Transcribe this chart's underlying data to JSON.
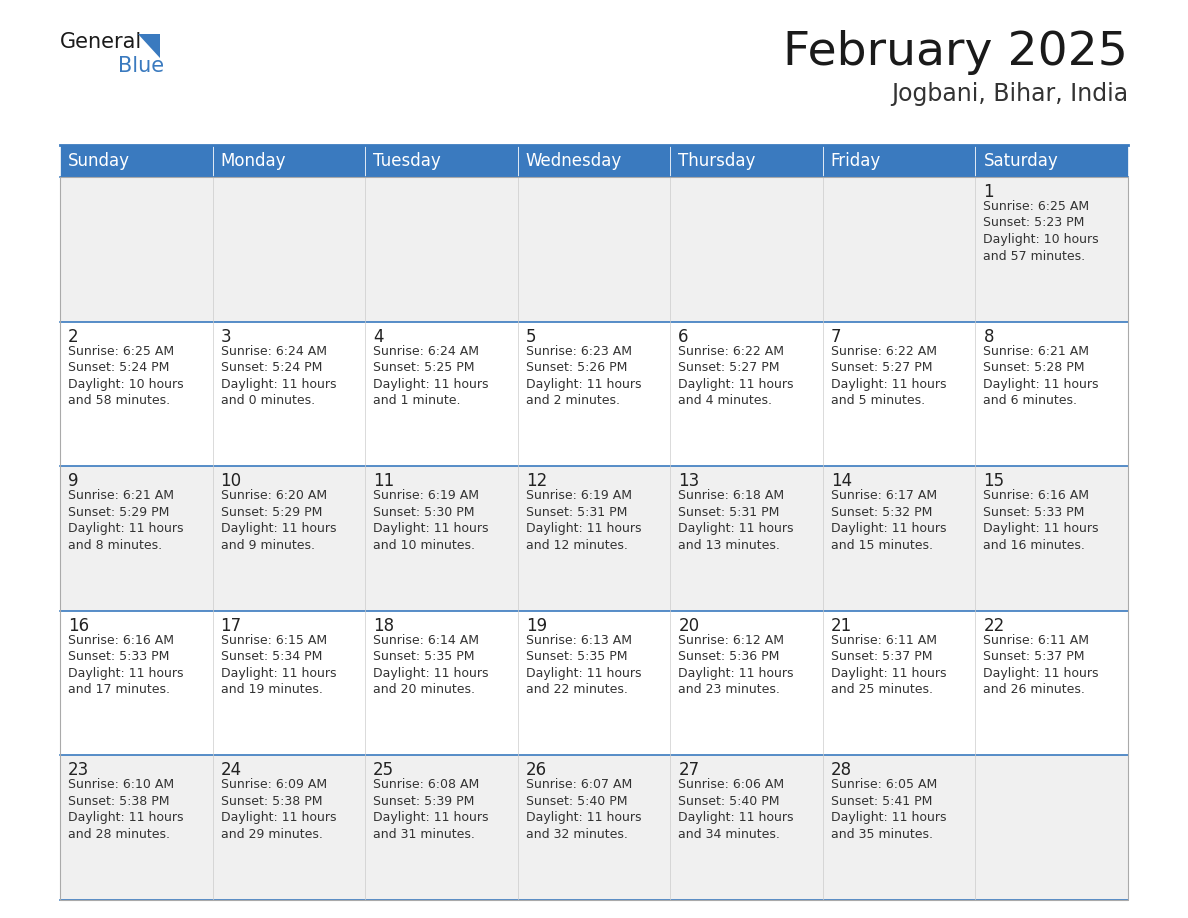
{
  "title": "February 2025",
  "subtitle": "Jogbani, Bihar, India",
  "header_color": "#3a7abf",
  "header_text_color": "#ffffff",
  "row0_bg": "#f0f0f0",
  "row1_bg": "#ffffff",
  "day_headers": [
    "Sunday",
    "Monday",
    "Tuesday",
    "Wednesday",
    "Thursday",
    "Friday",
    "Saturday"
  ],
  "days": [
    {
      "day": 1,
      "col": 6,
      "row": 0,
      "sunrise": "6:25 AM",
      "sunset": "5:23 PM",
      "daylight": "10 hours\nand 57 minutes."
    },
    {
      "day": 2,
      "col": 0,
      "row": 1,
      "sunrise": "6:25 AM",
      "sunset": "5:24 PM",
      "daylight": "10 hours\nand 58 minutes."
    },
    {
      "day": 3,
      "col": 1,
      "row": 1,
      "sunrise": "6:24 AM",
      "sunset": "5:24 PM",
      "daylight": "11 hours\nand 0 minutes."
    },
    {
      "day": 4,
      "col": 2,
      "row": 1,
      "sunrise": "6:24 AM",
      "sunset": "5:25 PM",
      "daylight": "11 hours\nand 1 minute."
    },
    {
      "day": 5,
      "col": 3,
      "row": 1,
      "sunrise": "6:23 AM",
      "sunset": "5:26 PM",
      "daylight": "11 hours\nand 2 minutes."
    },
    {
      "day": 6,
      "col": 4,
      "row": 1,
      "sunrise": "6:22 AM",
      "sunset": "5:27 PM",
      "daylight": "11 hours\nand 4 minutes."
    },
    {
      "day": 7,
      "col": 5,
      "row": 1,
      "sunrise": "6:22 AM",
      "sunset": "5:27 PM",
      "daylight": "11 hours\nand 5 minutes."
    },
    {
      "day": 8,
      "col": 6,
      "row": 1,
      "sunrise": "6:21 AM",
      "sunset": "5:28 PM",
      "daylight": "11 hours\nand 6 minutes."
    },
    {
      "day": 9,
      "col": 0,
      "row": 2,
      "sunrise": "6:21 AM",
      "sunset": "5:29 PM",
      "daylight": "11 hours\nand 8 minutes."
    },
    {
      "day": 10,
      "col": 1,
      "row": 2,
      "sunrise": "6:20 AM",
      "sunset": "5:29 PM",
      "daylight": "11 hours\nand 9 minutes."
    },
    {
      "day": 11,
      "col": 2,
      "row": 2,
      "sunrise": "6:19 AM",
      "sunset": "5:30 PM",
      "daylight": "11 hours\nand 10 minutes."
    },
    {
      "day": 12,
      "col": 3,
      "row": 2,
      "sunrise": "6:19 AM",
      "sunset": "5:31 PM",
      "daylight": "11 hours\nand 12 minutes."
    },
    {
      "day": 13,
      "col": 4,
      "row": 2,
      "sunrise": "6:18 AM",
      "sunset": "5:31 PM",
      "daylight": "11 hours\nand 13 minutes."
    },
    {
      "day": 14,
      "col": 5,
      "row": 2,
      "sunrise": "6:17 AM",
      "sunset": "5:32 PM",
      "daylight": "11 hours\nand 15 minutes."
    },
    {
      "day": 15,
      "col": 6,
      "row": 2,
      "sunrise": "6:16 AM",
      "sunset": "5:33 PM",
      "daylight": "11 hours\nand 16 minutes."
    },
    {
      "day": 16,
      "col": 0,
      "row": 3,
      "sunrise": "6:16 AM",
      "sunset": "5:33 PM",
      "daylight": "11 hours\nand 17 minutes."
    },
    {
      "day": 17,
      "col": 1,
      "row": 3,
      "sunrise": "6:15 AM",
      "sunset": "5:34 PM",
      "daylight": "11 hours\nand 19 minutes."
    },
    {
      "day": 18,
      "col": 2,
      "row": 3,
      "sunrise": "6:14 AM",
      "sunset": "5:35 PM",
      "daylight": "11 hours\nand 20 minutes."
    },
    {
      "day": 19,
      "col": 3,
      "row": 3,
      "sunrise": "6:13 AM",
      "sunset": "5:35 PM",
      "daylight": "11 hours\nand 22 minutes."
    },
    {
      "day": 20,
      "col": 4,
      "row": 3,
      "sunrise": "6:12 AM",
      "sunset": "5:36 PM",
      "daylight": "11 hours\nand 23 minutes."
    },
    {
      "day": 21,
      "col": 5,
      "row": 3,
      "sunrise": "6:11 AM",
      "sunset": "5:37 PM",
      "daylight": "11 hours\nand 25 minutes."
    },
    {
      "day": 22,
      "col": 6,
      "row": 3,
      "sunrise": "6:11 AM",
      "sunset": "5:37 PM",
      "daylight": "11 hours\nand 26 minutes."
    },
    {
      "day": 23,
      "col": 0,
      "row": 4,
      "sunrise": "6:10 AM",
      "sunset": "5:38 PM",
      "daylight": "11 hours\nand 28 minutes."
    },
    {
      "day": 24,
      "col": 1,
      "row": 4,
      "sunrise": "6:09 AM",
      "sunset": "5:38 PM",
      "daylight": "11 hours\nand 29 minutes."
    },
    {
      "day": 25,
      "col": 2,
      "row": 4,
      "sunrise": "6:08 AM",
      "sunset": "5:39 PM",
      "daylight": "11 hours\nand 31 minutes."
    },
    {
      "day": 26,
      "col": 3,
      "row": 4,
      "sunrise": "6:07 AM",
      "sunset": "5:40 PM",
      "daylight": "11 hours\nand 32 minutes."
    },
    {
      "day": 27,
      "col": 4,
      "row": 4,
      "sunrise": "6:06 AM",
      "sunset": "5:40 PM",
      "daylight": "11 hours\nand 34 minutes."
    },
    {
      "day": 28,
      "col": 5,
      "row": 4,
      "sunrise": "6:05 AM",
      "sunset": "5:41 PM",
      "daylight": "11 hours\nand 35 minutes."
    }
  ],
  "n_rows": 5,
  "n_cols": 7,
  "title_fontsize": 34,
  "subtitle_fontsize": 17,
  "header_fontsize": 12,
  "day_num_fontsize": 12,
  "cell_text_fontsize": 9
}
